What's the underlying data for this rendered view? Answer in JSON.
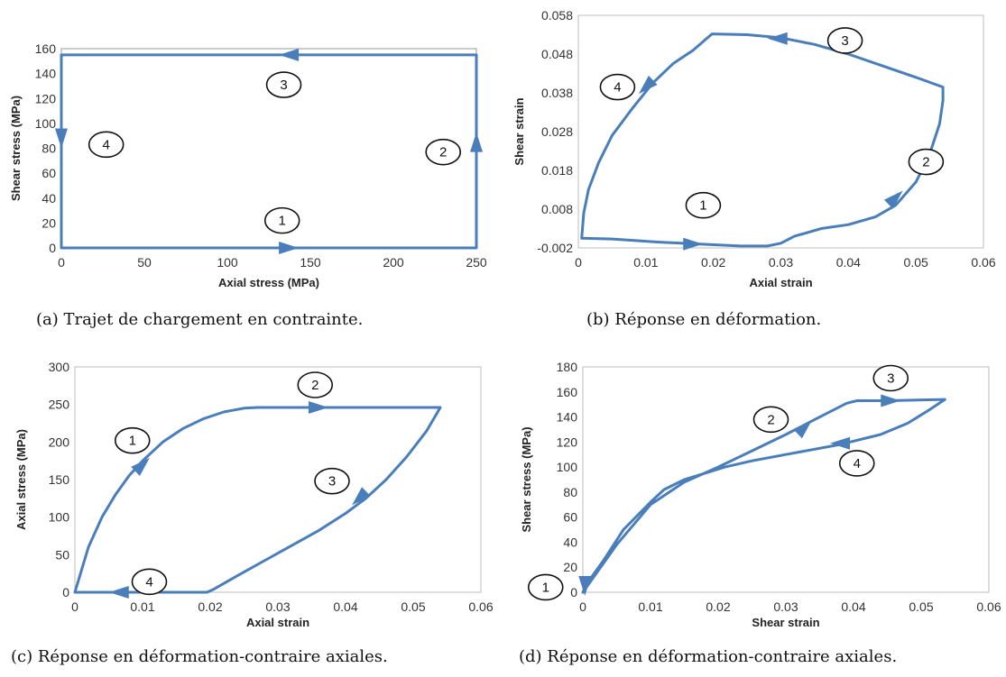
{
  "chart_data": [
    {
      "type": "line",
      "caption": "(a) Trajet de chargement en contrainte.",
      "xlabel": "Axial stress (MPa)",
      "ylabel": "Shear stress (MPa)",
      "xlim": [
        0,
        250
      ],
      "ylim": [
        0,
        160
      ],
      "xticks": [
        "0",
        "50",
        "100",
        "150",
        "200",
        "250"
      ],
      "yticks": [
        "0",
        "20",
        "40",
        "60",
        "80",
        "100",
        "120",
        "140",
        "160"
      ],
      "xtick_values": [
        0,
        50,
        100,
        150,
        200,
        250
      ],
      "ytick_values": [
        0,
        20,
        40,
        60,
        80,
        100,
        120,
        140,
        160
      ],
      "series": [
        {
          "x": [
            0,
            250,
            250,
            0,
            0
          ],
          "y": [
            0,
            0,
            155,
            155,
            0
          ]
        }
      ],
      "arrows": [
        {
          "x": 137,
          "y": 0,
          "dir": "right"
        },
        {
          "x": 250,
          "y": 85,
          "dir": "up"
        },
        {
          "x": 137,
          "y": 155,
          "dir": "left"
        },
        {
          "x": 0,
          "y": 88,
          "dir": "down"
        }
      ],
      "labels": [
        {
          "text": "1",
          "x": 133,
          "y": 22
        },
        {
          "text": "2",
          "x": 230,
          "y": 77
        },
        {
          "text": "3",
          "x": 134,
          "y": 131
        },
        {
          "text": "4",
          "x": 27,
          "y": 83
        }
      ]
    },
    {
      "type": "line",
      "caption": "(b) Réponse en déformation.",
      "xlabel": "Axial strain",
      "ylabel": "Shear strain",
      "xlim": [
        0,
        0.06
      ],
      "ylim": [
        -0.002,
        0.058
      ],
      "xticks": [
        "0",
        "0.01",
        "0.02",
        "0.03",
        "0.04",
        "0.05",
        "0.06"
      ],
      "yticks": [
        "-0.002",
        "0.008",
        "0.018",
        "0.028",
        "0.038",
        "0.048",
        "0.058"
      ],
      "xtick_values": [
        0,
        0.01,
        0.02,
        0.03,
        0.04,
        0.05,
        0.06
      ],
      "ytick_values": [
        -0.002,
        0.008,
        0.018,
        0.028,
        0.038,
        0.048,
        0.058
      ],
      "series": [
        {
          "x": [
            0.0005,
            0.005,
            0.012,
            0.018,
            0.024,
            0.028,
            0.03,
            0.032,
            0.036,
            0.04,
            0.044,
            0.047,
            0.05,
            0.052,
            0.0535,
            0.054,
            0.054,
            0.05,
            0.045,
            0.04,
            0.035,
            0.03,
            0.025,
            0.0198,
            0.019,
            0.017,
            0.014,
            0.011,
            0.008,
            0.005,
            0.003,
            0.0015,
            0.0008,
            0.0005
          ],
          "y": [
            0.0005,
            0.0003,
            -0.0005,
            -0.001,
            -0.0015,
            -0.0015,
            -0.0008,
            0.001,
            0.003,
            0.004,
            0.006,
            0.009,
            0.015,
            0.022,
            0.03,
            0.036,
            0.0395,
            0.042,
            0.045,
            0.048,
            0.0505,
            0.0522,
            0.053,
            0.0532,
            0.052,
            0.049,
            0.0455,
            0.0405,
            0.034,
            0.027,
            0.02,
            0.013,
            0.007,
            0.0005
          ]
        }
      ],
      "arrows": [
        {
          "x": 0.017,
          "y": -0.001,
          "dir": "right"
        },
        {
          "x": 0.047,
          "y": 0.011,
          "dir": "upright"
        },
        {
          "x": 0.0295,
          "y": 0.052,
          "dir": "left"
        },
        {
          "x": 0.01,
          "y": 0.0395,
          "dir": "downleft"
        }
      ],
      "labels": [
        {
          "text": "1",
          "x": 0.0185,
          "y": 0.009
        },
        {
          "text": "2",
          "x": 0.0515,
          "y": 0.0202
        },
        {
          "text": "3",
          "x": 0.0395,
          "y": 0.0515
        },
        {
          "text": "4",
          "x": 0.0058,
          "y": 0.0395
        }
      ]
    },
    {
      "type": "line",
      "caption": "(c) Réponse en déformation-contraire axiales.",
      "xlabel": "Axial strain",
      "ylabel": "Axial stress (MPa)",
      "xlim": [
        0,
        0.06
      ],
      "ylim": [
        0,
        300
      ],
      "xticks": [
        "0",
        "0.01",
        "0.02",
        "0.03",
        "0.04",
        "0.05",
        "0.06"
      ],
      "yticks": [
        "0",
        "50",
        "100",
        "150",
        "200",
        "250",
        "300"
      ],
      "xtick_values": [
        0,
        0.01,
        0.02,
        0.03,
        0.04,
        0.05,
        0.06
      ],
      "ytick_values": [
        0,
        50,
        100,
        150,
        200,
        250,
        300
      ],
      "series": [
        {
          "x": [
            0,
            0.002,
            0.004,
            0.006,
            0.008,
            0.01,
            0.013,
            0.016,
            0.019,
            0.022,
            0.025,
            0.027,
            0.054,
            0.054,
            0.052,
            0.049,
            0.046,
            0.043,
            0.04,
            0.036,
            0.032,
            0.028,
            0.024,
            0.0205,
            0.0195,
            0,
            0
          ],
          "y": [
            0,
            60,
            100,
            130,
            155,
            175,
            200,
            218,
            231,
            240,
            245,
            246,
            246,
            246,
            215,
            180,
            150,
            125,
            105,
            82,
            62,
            42,
            22,
            4,
            0,
            0,
            0
          ]
        }
      ],
      "arrows": [
        {
          "x": 0.01,
          "y": 170,
          "dir": "upright"
        },
        {
          "x": 0.036,
          "y": 246,
          "dir": "right"
        },
        {
          "x": 0.042,
          "y": 125,
          "dir": "downleft"
        },
        {
          "x": 0.0065,
          "y": 0,
          "dir": "left"
        }
      ],
      "labels": [
        {
          "text": "1",
          "x": 0.0085,
          "y": 202
        },
        {
          "text": "2",
          "x": 0.0355,
          "y": 276
        },
        {
          "text": "3",
          "x": 0.038,
          "y": 148
        },
        {
          "text": "4",
          "x": 0.011,
          "y": 14
        }
      ]
    },
    {
      "type": "line",
      "caption": "(d) Réponse en déformation-contraire axiales.",
      "xlabel": "Shear strain",
      "ylabel": "Shear stress (MPa)",
      "xlim": [
        0,
        0.06
      ],
      "ylim": [
        0,
        180
      ],
      "xticks": [
        "0",
        "0.01",
        "0.02",
        "0.03",
        "0.04",
        "0.05",
        "0.06"
      ],
      "yticks": [
        "0",
        "20",
        "40",
        "60",
        "80",
        "100",
        "120",
        "140",
        "160",
        "180"
      ],
      "xtick_values": [
        0,
        0.01,
        0.02,
        0.03,
        0.04,
        0.05,
        0.06
      ],
      "ytick_values": [
        0,
        20,
        40,
        60,
        80,
        100,
        120,
        140,
        160,
        180
      ],
      "series": [
        {
          "x": [
            0,
            0.005,
            0.01,
            0.015,
            0.02,
            0.025,
            0.03,
            0.035,
            0.039,
            0.0405,
            0.045,
            0.0535,
            0.0535,
            0.051,
            0.048,
            0.044,
            0.038,
            0.03,
            0.025,
            0.021,
            0.018,
            0.015,
            0.012,
            0.01,
            0.006,
            0.003,
            0.001,
            0.0003,
            0
          ],
          "y": [
            0,
            38,
            70,
            88,
            100,
            113,
            126,
            140,
            151,
            153,
            153,
            154,
            154,
            145,
            135,
            126,
            118,
            110,
            105,
            100,
            95,
            90,
            82,
            72,
            50,
            25,
            10,
            3,
            0
          ]
        }
      ],
      "arrows": [
        {
          "x": 0.0328,
          "y": 132,
          "dir": "upright"
        },
        {
          "x": 0.0455,
          "y": 153,
          "dir": "right"
        },
        {
          "x": 0.038,
          "y": 119,
          "dir": "left"
        },
        {
          "x": 0.0003,
          "y": 5,
          "dir": "down"
        }
      ],
      "labels": [
        {
          "text": "1",
          "x": -0.0055,
          "y": 4
        },
        {
          "text": "2",
          "x": 0.0278,
          "y": 138
        },
        {
          "text": "3",
          "x": 0.0455,
          "y": 171
        },
        {
          "text": "4",
          "x": 0.0405,
          "y": 103
        }
      ]
    }
  ]
}
